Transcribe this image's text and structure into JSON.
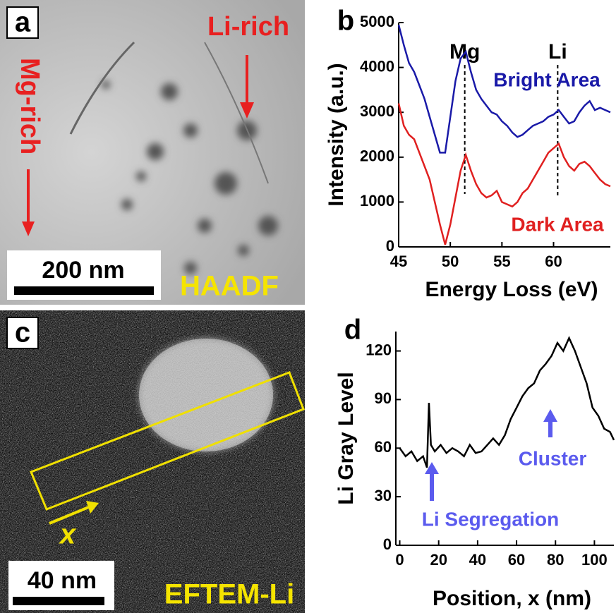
{
  "panels": {
    "a": {
      "label": "a",
      "li_rich": "Li-rich",
      "mg_rich": "Mg-rich",
      "scale": "200 nm",
      "mode": "HAADF"
    },
    "c": {
      "label": "c",
      "x_arrow": "x",
      "scale": "40 nm",
      "mode": "EFTEM-Li"
    }
  },
  "chart_data": [
    {
      "type": "line",
      "panel": "b",
      "xlabel": "Energy Loss (eV)",
      "ylabel": "Intensity (a.u.)",
      "x": [
        45,
        45.5,
        46,
        46.5,
        47,
        47.5,
        48,
        48.5,
        49,
        49.5,
        50,
        50.5,
        51,
        51.5,
        52,
        52.5,
        53,
        53.5,
        54,
        54.5,
        55,
        55.5,
        56,
        56.5,
        57,
        57.5,
        58,
        58.5,
        59,
        59.5,
        60,
        60.5,
        61,
        61.5,
        62,
        62.5,
        63,
        63.5,
        64,
        64.5,
        65,
        65.5
      ],
      "series": [
        {
          "name": "Bright Area",
          "color": "#1a1aa8",
          "values": [
            4950,
            4500,
            4100,
            3900,
            3600,
            3300,
            2900,
            2500,
            2100,
            2100,
            2900,
            3700,
            4200,
            4350,
            3900,
            3500,
            3300,
            3150,
            3000,
            2950,
            2800,
            2700,
            2550,
            2450,
            2500,
            2600,
            2700,
            2750,
            2800,
            2900,
            2950,
            3050,
            2900,
            2750,
            2800,
            3000,
            3150,
            3250,
            3050,
            3100,
            3050,
            3000
          ]
        },
        {
          "name": "Dark Area",
          "color": "#e02020",
          "values": [
            3200,
            2700,
            2500,
            2400,
            2100,
            1800,
            1500,
            1000,
            500,
            50,
            500,
            1100,
            1700,
            2050,
            1700,
            1400,
            1200,
            1100,
            1150,
            1250,
            1000,
            950,
            900,
            1000,
            1200,
            1300,
            1500,
            1700,
            1900,
            2100,
            2200,
            2300,
            2000,
            1800,
            1700,
            1850,
            1900,
            1800,
            1650,
            1500,
            1400,
            1350
          ]
        }
      ],
      "markers": [
        {
          "label": "Mg",
          "x": 51.4
        },
        {
          "label": "Li",
          "x": 60.4
        }
      ],
      "xlim": [
        45,
        65.5
      ],
      "xticks": [
        45,
        50,
        55,
        60
      ],
      "ylim": [
        0,
        5000
      ],
      "yticks": [
        0,
        1000,
        2000,
        3000,
        4000,
        5000
      ]
    },
    {
      "type": "line",
      "panel": "d",
      "xlabel": "Position, x (nm)",
      "ylabel": "Li Gray Level",
      "x": [
        0,
        3,
        6,
        9,
        12,
        14,
        15,
        16,
        18,
        21,
        24,
        27,
        30,
        33,
        36,
        39,
        42,
        45,
        48,
        51,
        54,
        57,
        60,
        63,
        66,
        69,
        72,
        75,
        78,
        81,
        84,
        87,
        90,
        93,
        96,
        99,
        102,
        105,
        108,
        110
      ],
      "series": [
        {
          "name": "Li",
          "color": "#000000",
          "values": [
            60,
            55,
            58,
            52,
            55,
            48,
            88,
            62,
            58,
            62,
            57,
            60,
            58,
            55,
            62,
            57,
            58,
            62,
            66,
            62,
            68,
            78,
            85,
            92,
            97,
            100,
            108,
            112,
            117,
            125,
            120,
            128,
            120,
            110,
            100,
            85,
            80,
            72,
            70,
            65
          ]
        }
      ],
      "annotations": [
        "Li Segregation",
        "Cluster"
      ],
      "xlim": [
        -2,
        110
      ],
      "xticks": [
        0,
        20,
        40,
        60,
        80,
        100
      ],
      "ylim": [
        0,
        132
      ],
      "yticks": [
        0,
        30,
        60,
        90,
        120
      ]
    }
  ]
}
